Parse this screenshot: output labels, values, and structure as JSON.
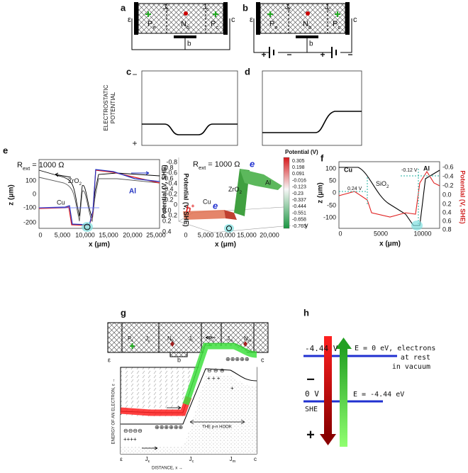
{
  "panel_a": {
    "label": "a",
    "emitter": "ε",
    "junction_e": {
      "t": "J",
      "s": "ε"
    },
    "junction_c": {
      "t": "J",
      "s": "c"
    },
    "region_pe": {
      "t": "P",
      "s": "e"
    },
    "region_nb": {
      "t": "N",
      "s": "b"
    },
    "region_pc": {
      "t": "P",
      "s": "c"
    },
    "collector": "c",
    "base": "b"
  },
  "panel_b": {
    "label": "b",
    "emitter": "ε",
    "junction_e": {
      "t": "J",
      "s": "ε"
    },
    "junction_c": {
      "t": "J",
      "s": "c"
    },
    "region_pe": {
      "t": "P",
      "s": "e"
    },
    "region_nb": {
      "t": "N",
      "s": "b"
    },
    "region_pc": {
      "t": "P",
      "s": "c"
    },
    "collector": "c",
    "base": "b",
    "bias_signs": [
      "+",
      "−",
      "+",
      "−"
    ]
  },
  "panel_c": {
    "label": "c"
  },
  "panel_d": {
    "label": "d"
  },
  "potential_axis": {
    "title": [
      "ELECTROSTATIC",
      "POTENTIAL"
    ],
    "top": "−",
    "bottom": "+"
  },
  "panel_e": {
    "label": "e",
    "left_plot": {
      "resistance": {
        "t": "R",
        "s": "ext",
        "r": " = 1000 Ω"
      },
      "y_label": "z (μm)",
      "y_ticks": [
        "100",
        "0",
        "-100",
        "-200"
      ],
      "y2_label": "Potential (V, SHE)",
      "y2_ticks": [
        "-0.8",
        "-0.6",
        "-0.4",
        "-0.2",
        "0.0",
        "0.2",
        "0.4"
      ],
      "x_label": "x (μm)",
      "x_ticks": [
        "0",
        "5,000",
        "10,000",
        "15,000",
        "20,000",
        "25,000"
      ],
      "oxide": {
        "t": "ZrO",
        "s": "2"
      },
      "al": "Al",
      "cu": "Cu"
    },
    "surface_plot": {
      "resistance": {
        "t": "R",
        "s": "ext",
        "r": " = 1000 Ω"
      },
      "z_label": "Potential (V, SHE)",
      "z_ticks": [
        "-0.8",
        "-0.6",
        "-0.4",
        "-0.2",
        "0",
        "0.2"
      ],
      "x_label": "x (μm)",
      "x_ticks": [
        "0",
        "5,000",
        "10,000",
        "15,000",
        "20,000"
      ],
      "y_label": "y",
      "cu": "Cu",
      "oxide": {
        "t": "ZrO",
        "s": "2"
      },
      "al": "Al",
      "electron_top": "e",
      "electron_bottom": "e",
      "hole": {
        "t": "h",
        "p": "+"
      },
      "colorbar_title": "Potential (V)",
      "colorbar_ticks": [
        "0.305",
        "0.198",
        "0.091",
        "-0.016",
        "-0.123",
        "-0.23",
        "-0.337",
        "-0.444",
        "-0.551",
        "-0.658",
        "-0.765"
      ]
    }
  },
  "panel_f": {
    "label": "f",
    "cu": "Cu",
    "al": "Al",
    "oxide": {
      "t": "SiO",
      "s": "2"
    },
    "left_potential": "0.24 V",
    "right_potential": "-0.12 V",
    "y_label": "z (μm)",
    "y_ticks": [
      "100",
      "50",
      "0",
      "-50",
      "-100"
    ],
    "y2_label": "Potential (V, SHE)",
    "y2_ticks": [
      "-0.6",
      "-0.4",
      "-0.2",
      "0.0",
      "0.2",
      "0.4",
      "0.6",
      "0.8"
    ],
    "x_label": "x (μm)",
    "x_ticks": [
      "0",
      "5000",
      "10000"
    ]
  },
  "panel_g": {
    "label": "g",
    "strip": [
      {
        "t": "P",
        "s": "ε"
      },
      {
        "t": "J",
        "s": "ε"
      },
      {
        "t": "N",
        "s": "b"
      },
      {
        "t": "J",
        "s": "c"
      },
      {
        "t": "P",
        "s": "c"
      },
      {
        "t": "J",
        "s": "m"
      },
      {
        "t": "N",
        "s": "m"
      }
    ],
    "strip_emitter": "ε",
    "strip_base": "b",
    "strip_collector": "c",
    "y_label": "ENERGY OF AN ELECTRON, ε →",
    "x_label": "DISTANCE, x →",
    "x_ticks": [
      "ε",
      {
        "t": "J",
        "s": "ε"
      },
      {
        "t": "J",
        "s": "c"
      },
      {
        "t": "J",
        "s": "m"
      },
      "c"
    ],
    "hook": "THE p-n HOOK",
    "charges": [
      "⊖⊖⊖⊖",
      "++++",
      "⊕⊕⊕⊕⊕⊕",
      "⊖ ⊖ ⊖",
      "+ + +",
      "⊕⊕⊕⊕⊕",
      "+"
    ]
  },
  "panel_h": {
    "label": "h",
    "vacuum_level": "-4.44 V",
    "vacuum_energy": [
      "E = 0 eV, electrons",
      "at rest",
      "in vacuum"
    ],
    "minus": "−",
    "she_level": "0 V",
    "she_energy": "E = -4.44 eV",
    "she": "SHE",
    "plus": "+"
  }
}
